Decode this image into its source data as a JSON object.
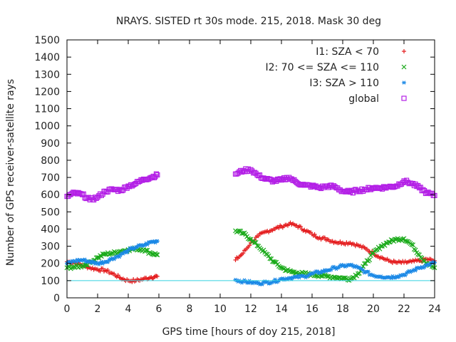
{
  "chart_data": {
    "type": "scatter",
    "title": "NRAYS. SISTED rt 30s mode. 215, 2018. Mask 30 deg",
    "xlabel": "GPS time [hours of doy 215, 2018]",
    "ylabel": "Number of GPS receiver-satellite rays",
    "xlim": [
      0,
      24
    ],
    "ylim": [
      0,
      1500
    ],
    "x_ticks": [
      "0",
      "2",
      "4",
      "6",
      "8",
      "10",
      "12",
      "14",
      "16",
      "18",
      "20",
      "22",
      "24"
    ],
    "y_ticks": [
      "0",
      "100",
      "200",
      "300",
      "400",
      "500",
      "600",
      "700",
      "800",
      "900",
      "1000",
      "1100",
      "1200",
      "1300",
      "1400",
      "1500"
    ],
    "reference_line": {
      "y": 100,
      "color": "#33d1e0"
    },
    "series": [
      {
        "name": "I1: SZA < 70",
        "marker": "+",
        "color": "#e41a1c",
        "points": [
          [
            0,
            210
          ],
          [
            0.5,
            205
          ],
          [
            1,
            190
          ],
          [
            1.5,
            175
          ],
          [
            2,
            165
          ],
          [
            2.5,
            160
          ],
          [
            3,
            140
          ],
          [
            3.5,
            115
          ],
          [
            4,
            100
          ],
          [
            4.5,
            100
          ],
          [
            5,
            110
          ],
          [
            5.5,
            120
          ],
          [
            5.9,
            125
          ],
          [
            11,
            220
          ],
          [
            11.5,
            260
          ],
          [
            12,
            320
          ],
          [
            12.5,
            360
          ],
          [
            13,
            385
          ],
          [
            13.5,
            400
          ],
          [
            14,
            415
          ],
          [
            14.5,
            430
          ],
          [
            15,
            420
          ],
          [
            15.5,
            395
          ],
          [
            16,
            370
          ],
          [
            16.5,
            350
          ],
          [
            17,
            340
          ],
          [
            17.5,
            325
          ],
          [
            18,
            320
          ],
          [
            18.5,
            320
          ],
          [
            19,
            305
          ],
          [
            19.5,
            285
          ],
          [
            20,
            260
          ],
          [
            20.5,
            235
          ],
          [
            21,
            215
          ],
          [
            21.5,
            205
          ],
          [
            22,
            205
          ],
          [
            22.5,
            210
          ],
          [
            23,
            215
          ],
          [
            23.5,
            225
          ],
          [
            24,
            215
          ]
        ]
      },
      {
        "name": "I2: 70 <= SZA <= 110",
        "marker": "x",
        "color": "#1aaa1a",
        "points": [
          [
            0,
            175
          ],
          [
            0.5,
            180
          ],
          [
            1,
            185
          ],
          [
            1.5,
            205
          ],
          [
            2,
            235
          ],
          [
            2.5,
            255
          ],
          [
            3,
            260
          ],
          [
            3.5,
            270
          ],
          [
            4,
            280
          ],
          [
            4.5,
            285
          ],
          [
            5,
            280
          ],
          [
            5.5,
            260
          ],
          [
            5.9,
            250
          ],
          [
            11,
            390
          ],
          [
            11.5,
            375
          ],
          [
            12,
            340
          ],
          [
            12.5,
            300
          ],
          [
            13,
            255
          ],
          [
            13.5,
            210
          ],
          [
            14,
            175
          ],
          [
            14.5,
            155
          ],
          [
            15,
            145
          ],
          [
            15.5,
            140
          ],
          [
            16,
            135
          ],
          [
            16.5,
            130
          ],
          [
            17,
            125
          ],
          [
            17.5,
            120
          ],
          [
            18,
            115
          ],
          [
            18.5,
            110
          ],
          [
            19,
            140
          ],
          [
            19.5,
            200
          ],
          [
            20,
            260
          ],
          [
            20.5,
            300
          ],
          [
            21,
            325
          ],
          [
            21.5,
            340
          ],
          [
            22,
            345
          ],
          [
            22.5,
            310
          ],
          [
            23,
            250
          ],
          [
            23.5,
            200
          ],
          [
            24,
            175
          ]
        ]
      },
      {
        "name": "I3: SZA > 110",
        "marker": "*",
        "color": "#1a88e6",
        "points": [
          [
            0,
            200
          ],
          [
            0.5,
            215
          ],
          [
            1,
            220
          ],
          [
            1.5,
            210
          ],
          [
            2,
            200
          ],
          [
            2.5,
            210
          ],
          [
            3,
            230
          ],
          [
            3.5,
            250
          ],
          [
            4,
            275
          ],
          [
            4.5,
            295
          ],
          [
            5,
            305
          ],
          [
            5.5,
            325
          ],
          [
            5.9,
            330
          ],
          [
            11,
            105
          ],
          [
            11.5,
            95
          ],
          [
            12,
            90
          ],
          [
            12.5,
            85
          ],
          [
            13,
            90
          ],
          [
            13.5,
            95
          ],
          [
            14,
            110
          ],
          [
            14.5,
            115
          ],
          [
            15,
            120
          ],
          [
            15.5,
            125
          ],
          [
            16,
            140
          ],
          [
            16.5,
            150
          ],
          [
            17,
            160
          ],
          [
            17.5,
            175
          ],
          [
            18,
            185
          ],
          [
            18.5,
            190
          ],
          [
            19,
            175
          ],
          [
            19.5,
            150
          ],
          [
            20,
            130
          ],
          [
            20.5,
            125
          ],
          [
            21,
            120
          ],
          [
            21.5,
            125
          ],
          [
            22,
            135
          ],
          [
            22.5,
            155
          ],
          [
            23,
            175
          ],
          [
            23.5,
            190
          ],
          [
            24,
            205
          ]
        ]
      },
      {
        "name": "global",
        "marker": "square",
        "color": "#b31fe6",
        "points": [
          [
            0,
            590
          ],
          [
            0.5,
            610
          ],
          [
            1,
            600
          ],
          [
            1.5,
            570
          ],
          [
            2,
            585
          ],
          [
            2.5,
            620
          ],
          [
            3,
            630
          ],
          [
            3.5,
            625
          ],
          [
            4,
            650
          ],
          [
            4.5,
            665
          ],
          [
            5,
            690
          ],
          [
            5.5,
            700
          ],
          [
            5.9,
            715
          ],
          [
            11,
            720
          ],
          [
            11.5,
            740
          ],
          [
            12,
            745
          ],
          [
            12.5,
            710
          ],
          [
            13,
            690
          ],
          [
            13.5,
            680
          ],
          [
            14,
            685
          ],
          [
            14.5,
            700
          ],
          [
            15,
            670
          ],
          [
            15.5,
            655
          ],
          [
            16,
            650
          ],
          [
            16.5,
            640
          ],
          [
            17,
            650
          ],
          [
            17.5,
            645
          ],
          [
            18,
            620
          ],
          [
            18.5,
            615
          ],
          [
            19,
            625
          ],
          [
            19.5,
            630
          ],
          [
            20,
            640
          ],
          [
            20.5,
            640
          ],
          [
            21,
            645
          ],
          [
            21.5,
            650
          ],
          [
            22,
            680
          ],
          [
            22.5,
            665
          ],
          [
            23,
            640
          ],
          [
            23.5,
            610
          ],
          [
            24,
            595
          ]
        ]
      }
    ]
  }
}
